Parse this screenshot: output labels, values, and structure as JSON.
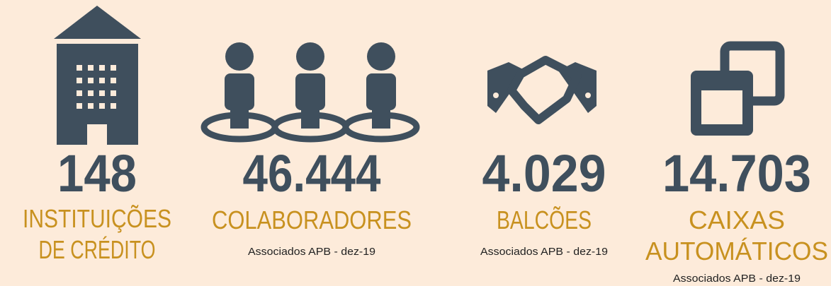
{
  "items": [
    {
      "number": "148",
      "label": [
        "INSTITUIÇÕES",
        "DE CRÉDITO"
      ]
    },
    {
      "number": "46.444",
      "label": [
        "COLABORADORES"
      ],
      "note": "Associados APB - dez-19"
    },
    {
      "number": "4.029",
      "label": [
        "BALCÕES"
      ],
      "note": "Associados APB - dez-19"
    },
    {
      "number": "14.703",
      "label": [
        "CAIXAS",
        "AUTOMÁTICOS"
      ],
      "note": "Associados APB - dez-19"
    }
  ]
}
